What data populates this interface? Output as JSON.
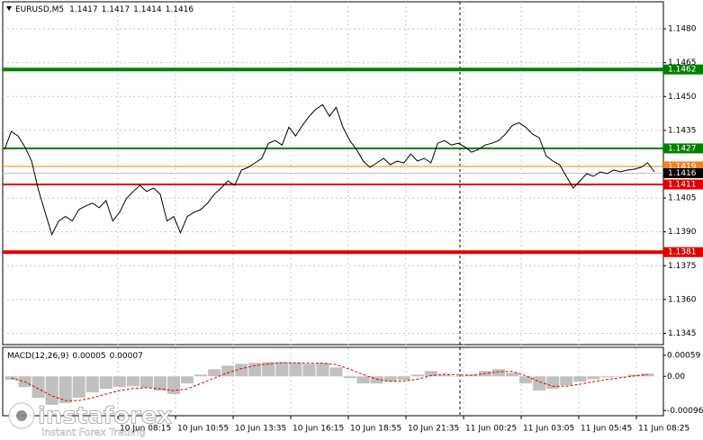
{
  "symbol": "EURUSD,M5",
  "ohlc": [
    1.1417,
    1.1417,
    1.1414,
    1.1416
  ],
  "watermark": {
    "brand": "instaforex",
    "tagline": "Instant Forex Trading"
  },
  "chart_data": [
    {
      "type": "line",
      "color": "#000000",
      "grid": true,
      "ylim": [
        1.134,
        1.1492
      ],
      "yticks": [
        {
          "value": 1.148,
          "label": "1.1480"
        },
        1.1465,
        {
          "value": 1.145,
          "label": "1.1450"
        },
        1.1435,
        1.1405,
        {
          "value": 1.139,
          "label": "1.1390"
        },
        1.1375,
        {
          "value": 1.136,
          "label": "1.1360"
        },
        1.1345
      ],
      "x_labels": [
        "10 Jun 08:15",
        "10 Jun 10:55",
        "10 Jun 13:35",
        "10 Jun 16:15",
        "10 Jun 18:55",
        "10 Jun 21:35",
        "11 Jun 00:25",
        "11 Jun 03:05",
        "11 Jun 05:45",
        "11 Jun 08:25"
      ],
      "levels": [
        {
          "value": 1.1462,
          "color": "#008000",
          "width": 4
        },
        {
          "value": 1.1427,
          "color": "#008000",
          "width": 2
        },
        {
          "value": 1.1419,
          "color": "#f08020",
          "width": 1
        },
        {
          "value": 1.1416,
          "color": "#000000",
          "width": 1
        },
        {
          "value": 1.1411,
          "color": "#e00000",
          "width": 2
        },
        {
          "value": 1.1381,
          "color": "#e00000",
          "width": 4
        }
      ],
      "values": [
        1.14265,
        1.14345,
        1.14325,
        1.14277,
        1.14214,
        1.14087,
        1.13987,
        1.13888,
        1.13948,
        1.13968,
        1.13948,
        1.13999,
        1.14015,
        1.14027,
        1.14007,
        1.14039,
        1.13948,
        1.13987,
        1.14047,
        1.14079,
        1.14106,
        1.14079,
        1.14094,
        1.14067,
        1.13948,
        1.13968,
        1.13896,
        1.13968,
        1.13987,
        1.13999,
        1.14027,
        1.14067,
        1.14094,
        1.14126,
        1.14106,
        1.14174,
        1.14186,
        1.14206,
        1.14226,
        1.14293,
        1.14305,
        1.14285,
        1.14364,
        1.14325,
        1.14372,
        1.14412,
        1.14444,
        1.14464,
        1.14412,
        1.14452,
        1.14364,
        1.14305,
        1.14265,
        1.14214,
        1.14186,
        1.14206,
        1.14226,
        1.14198,
        1.14214,
        1.14206,
        1.14245,
        1.14214,
        1.14226,
        1.14206,
        1.14293,
        1.14305,
        1.14285,
        1.14293,
        1.14277,
        1.14253,
        1.14265,
        1.14285,
        1.14293,
        1.14305,
        1.14333,
        1.14372,
        1.14384,
        1.14364,
        1.14333,
        1.14317,
        1.14237,
        1.14214,
        1.14198,
        1.14146,
        1.14094,
        1.14126,
        1.14158,
        1.14146,
        1.14166,
        1.14158,
        1.14174,
        1.14166,
        1.14174,
        1.14178,
        1.14186,
        1.14206,
        1.14166
      ]
    },
    {
      "type": "bar",
      "title": "MACD(12,26,9)",
      "last": [
        5e-05,
        7e-05
      ],
      "ylim": [
        -0.00108,
        0.00079
      ],
      "yticks": [
        0.00059,
        {
          "value": 0,
          "label": "0.00"
        },
        -0.00096
      ],
      "color": "#c0c0c0",
      "values": [
        -0.0001,
        -0.0003,
        -0.0006,
        -0.0008,
        -0.00075,
        -0.0006,
        -0.00045,
        -0.00035,
        -0.0003,
        -0.00028,
        -0.00032,
        -0.0004,
        -0.0005,
        -0.0002,
        5e-05,
        0.0002,
        0.0003,
        0.00035,
        0.00038,
        0.0004,
        0.0004,
        0.00038,
        0.00035,
        0.00038,
        0.00025,
        -5e-05,
        -0.0002,
        -0.0002,
        -0.00015,
        -0.0001,
        5e-05,
        0.00015,
        5e-05,
        0,
        5e-05,
        0.00015,
        0.0002,
        0.0001,
        -0.0002,
        -0.0004,
        -0.00035,
        -0.00025,
        -0.00015,
        -8e-05,
        -3e-05,
        0,
        5e-05,
        8e-05
      ],
      "signal": {
        "color": "#e00000",
        "values": [
          -5e-05,
          -0.00015,
          -0.00035,
          -0.00055,
          -0.00068,
          -0.00068,
          -0.0006,
          -0.0005,
          -0.0004,
          -0.00034,
          -0.00032,
          -0.00035,
          -0.0004,
          -0.00035,
          -0.0002,
          -5e-05,
          0.0001,
          0.00022,
          0.0003,
          0.00035,
          0.00038,
          0.00038,
          0.00037,
          0.00037,
          0.00033,
          0.0002,
          5e-05,
          -8e-05,
          -0.00014,
          -0.00013,
          -8e-05,
          2e-05,
          6e-05,
          4e-05,
          3e-05,
          8e-05,
          0.00013,
          0.00014,
          2e-05,
          -0.00015,
          -0.00028,
          -0.00028,
          -0.00022,
          -0.00015,
          -9e-05,
          -4e-05,
          1e-05,
          5e-05
        ]
      }
    }
  ]
}
